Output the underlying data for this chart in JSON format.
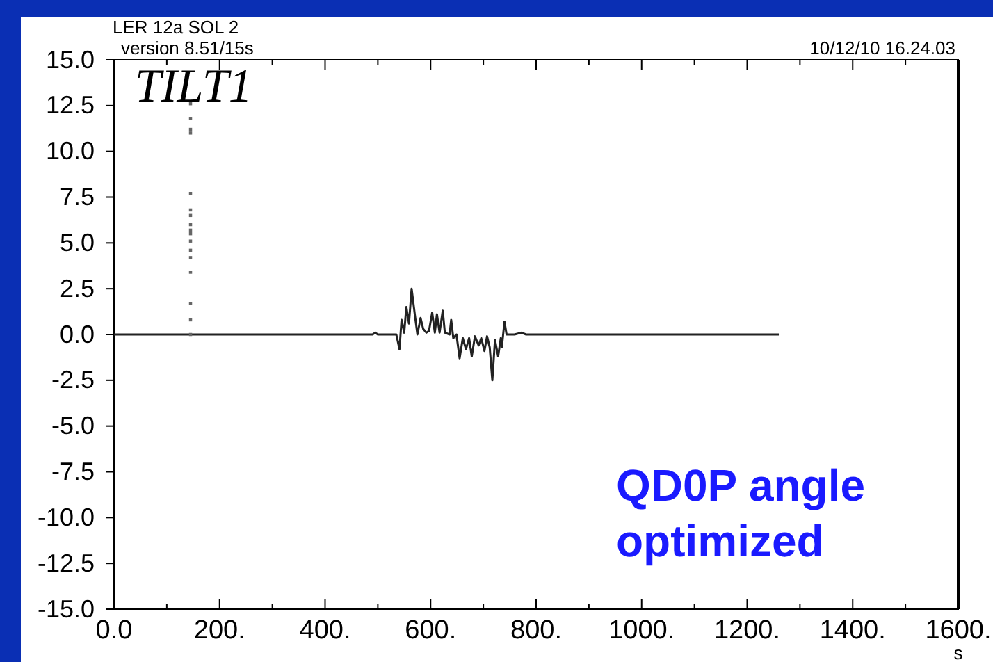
{
  "chart_data": {
    "type": "line",
    "title": "LER 12a SOL 2",
    "subtitle": "version 8.51/15s",
    "xlabel": "s",
    "annotations": [
      "10/12/10  16.24.03",
      "TILT1",
      "QD0P angle optimized"
    ],
    "xlim": [
      0,
      1600
    ],
    "ylim": [
      -15,
      15
    ],
    "xticks": [
      {
        "value": 0,
        "label": "0.0"
      },
      {
        "value": 100,
        "label": null
      },
      {
        "value": 200,
        "label": "200."
      },
      {
        "value": 300,
        "label": null
      },
      {
        "value": 400,
        "label": "400."
      },
      {
        "value": 500,
        "label": null
      },
      {
        "value": 600,
        "label": "600."
      },
      {
        "value": 700,
        "label": null
      },
      {
        "value": 800,
        "label": "800."
      },
      {
        "value": 900,
        "label": null
      },
      {
        "value": 1000,
        "label": "1000."
      },
      {
        "value": 1100,
        "label": null
      },
      {
        "value": 1200,
        "label": "1200."
      },
      {
        "value": 1300,
        "label": null
      },
      {
        "value": 1400,
        "label": "1400."
      },
      {
        "value": 1500,
        "label": null
      },
      {
        "value": 1600,
        "label": "1600."
      }
    ],
    "yticks": [
      {
        "value": -15,
        "label": "-15.0"
      },
      {
        "value": -12.5,
        "label": "-12.5"
      },
      {
        "value": -10,
        "label": "-10.0"
      },
      {
        "value": -7.5,
        "label": "-7.5"
      },
      {
        "value": -5,
        "label": "-5.0"
      },
      {
        "value": -2.5,
        "label": "-2.5"
      },
      {
        "value": 0,
        "label": "0.0"
      },
      {
        "value": 2.5,
        "label": "2.5"
      },
      {
        "value": 5,
        "label": "5.0"
      },
      {
        "value": 7.5,
        "label": "7.5"
      },
      {
        "value": 10,
        "label": "10.0"
      },
      {
        "value": 12.5,
        "label": "12.5"
      },
      {
        "value": 15,
        "label": "15.0"
      }
    ],
    "grid": false,
    "series": [
      {
        "color": "#222222",
        "x": [
          0,
          490,
          495,
          500,
          535,
          541,
          545,
          550,
          554,
          559,
          564,
          570,
          575,
          581,
          586,
          592,
          597,
          603,
          608,
          612,
          617,
          623,
          627,
          636,
          639,
          643,
          649,
          655,
          661,
          667,
          673,
          678,
          684,
          691,
          696,
          702,
          707,
          712,
          717,
          722,
          728,
          733,
          735,
          740,
          744,
          759,
          772,
          781,
          1260
        ],
        "values": [
          0,
          0,
          0.1,
          0,
          0,
          -0.8,
          0.8,
          0.1,
          1.5,
          0.6,
          2.5,
          1.1,
          0,
          0.9,
          0.3,
          0.1,
          0.2,
          1.2,
          0.1,
          1.1,
          0.1,
          1.3,
          0.1,
          0,
          0.8,
          -0.2,
          0,
          -1.3,
          -0.2,
          -0.8,
          -0.2,
          -1.2,
          -0.1,
          -0.6,
          -0.2,
          -0.9,
          -0.1,
          -0.7,
          -2.5,
          -0.3,
          -1.2,
          -0.2,
          -0.7,
          0.7,
          0,
          0,
          0.1,
          0,
          0
        ]
      },
      {
        "type": "scatter",
        "color": "#666666",
        "marker": "square",
        "x": [
          145,
          145,
          145,
          145,
          145,
          145,
          145,
          145,
          145,
          145,
          145,
          145,
          145,
          145,
          145,
          145,
          145
        ],
        "values": [
          12.6,
          11.8,
          11.2,
          11.0,
          7.7,
          6.8,
          6.5,
          6.0,
          5.7,
          5.5,
          5.1,
          4.6,
          4.2,
          3.4,
          1.7,
          0.8,
          0
        ]
      }
    ]
  }
}
